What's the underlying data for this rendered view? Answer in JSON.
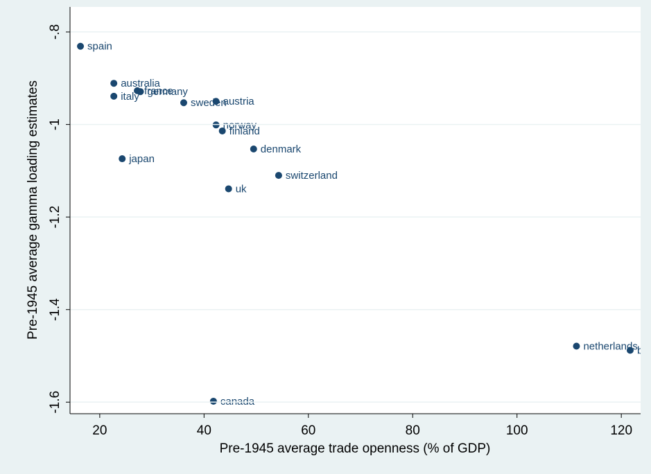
{
  "chart_data": {
    "type": "scatter",
    "x_label": "Pre-1945 average trade openness (% of GDP)",
    "y_label": "Pre-1945 average gamma loading estimates",
    "color": "#1a476f",
    "grid": true,
    "xlim": [
      14.3,
      123.7
    ],
    "ylim": [
      -1.625,
      -0.746
    ],
    "xticks": [
      20,
      40,
      60,
      80,
      100,
      120
    ],
    "yticks": [
      {
        "value": -0.8,
        "label": "-.8"
      },
      -1,
      -1.2,
      -1.4,
      -1.6
    ],
    "labels": [
      "spain",
      "australia",
      "italy",
      "france",
      "germany",
      "sweden",
      "austria",
      "norway",
      "finland",
      "denmark",
      "japan",
      "switzerland",
      "uk",
      "netherlands",
      "belgium",
      "canada"
    ],
    "x": [
      16.3,
      22.7,
      22.7,
      27.2,
      27.8,
      36.1,
      42.3,
      42.3,
      43.5,
      49.5,
      24.3,
      54.3,
      44.7,
      111.4,
      121.7,
      41.8
    ],
    "y": [
      -0.831,
      -0.911,
      -0.939,
      -0.927,
      -0.929,
      -0.953,
      -0.95,
      -1.001,
      -1.014,
      -1.053,
      -1.074,
      -1.11,
      -1.139,
      -1.479,
      -1.488,
      -1.598
    ]
  }
}
